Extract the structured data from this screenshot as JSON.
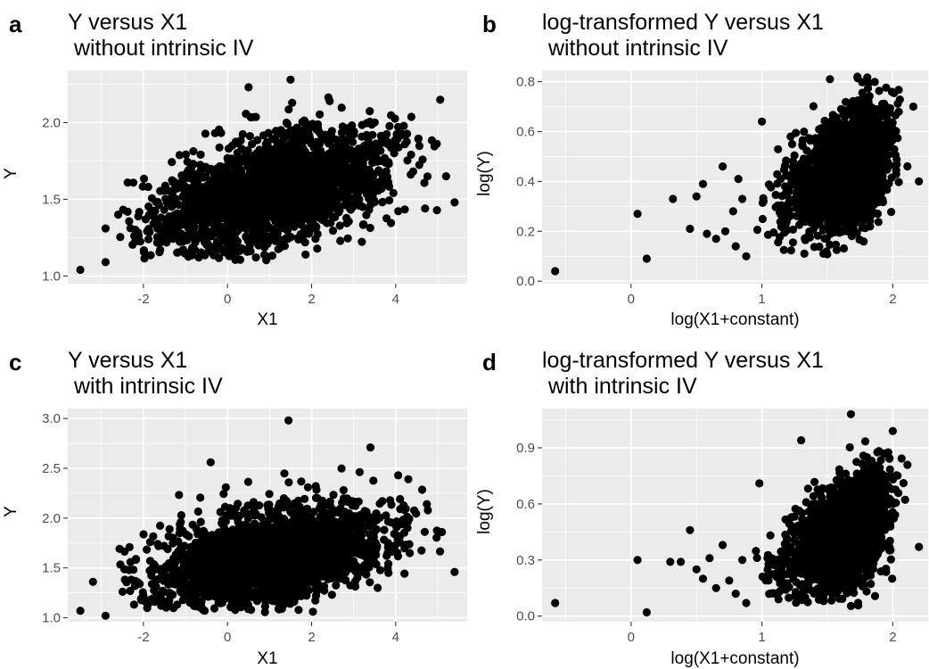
{
  "chart_data": [
    {
      "tag": "a",
      "type": "scatter",
      "title_line1": "Y versus X1",
      "title_line2": " without intrinsic IV",
      "xlabel": "X1",
      "ylabel": "Y",
      "xlim": [
        -3.8,
        5.7
      ],
      "ylim": [
        0.95,
        2.34
      ],
      "xticks": [
        -2,
        0,
        2,
        4
      ],
      "xtick_labels": [
        "-2",
        "0",
        "2",
        "4"
      ],
      "xminor": [
        -3,
        -1,
        1,
        3,
        5
      ],
      "yticks": [
        1.0,
        1.5,
        2.0
      ],
      "ytick_labels": [
        "1.0",
        "1.5",
        "2.0"
      ],
      "yminor": [
        1.25,
        1.75,
        2.25
      ],
      "grid": true,
      "cloud": {
        "n": 2300,
        "seed": 11,
        "x_mean": 1.0,
        "x_sd": 1.4,
        "y_mean": 1.55,
        "y_sd": 0.2,
        "correlation": 0.5,
        "x_range": [
          -2.6,
          5.1
        ],
        "y_range": [
          1.1,
          2.25
        ]
      },
      "outliers": [
        {
          "x": -3.5,
          "y": 1.04
        },
        {
          "x": -2.9,
          "y": 1.09
        },
        {
          "x": -2.9,
          "y": 1.31
        },
        {
          "x": -2.6,
          "y": 1.4
        },
        {
          "x": 0.5,
          "y": 2.23
        },
        {
          "x": 1.5,
          "y": 2.28
        },
        {
          "x": 5.4,
          "y": 1.48
        },
        {
          "x": 5.2,
          "y": 1.65
        },
        {
          "x": 4.7,
          "y": 1.44
        }
      ]
    },
    {
      "tag": "b",
      "type": "scatter",
      "title_line1": "log-transformed Y versus X1",
      "title_line2": " without intrinsic IV",
      "xlabel": "log(X1+constant)",
      "ylabel": "log(Y)",
      "xlim": [
        -0.68,
        2.27
      ],
      "ylim": [
        -0.01,
        0.845
      ],
      "xticks": [
        0,
        1,
        2
      ],
      "xtick_labels": [
        "0",
        "1",
        "2"
      ],
      "xminor": [
        -0.5,
        0.5,
        1.5
      ],
      "yticks": [
        0.0,
        0.2,
        0.4,
        0.6,
        0.8
      ],
      "ytick_labels": [
        "0.0",
        "0.2",
        "0.4",
        "0.6",
        "0.8"
      ],
      "yminor": [
        0.1,
        0.3,
        0.5,
        0.7
      ],
      "grid": true,
      "cloud": {
        "n": 2300,
        "seed": 23,
        "x_mean": 1.7,
        "x_sd": 0.22,
        "y_mean": 0.45,
        "y_sd": 0.12,
        "correlation": 0.45,
        "x_range": [
          0.95,
          2.25
        ],
        "y_range": [
          0.1,
          0.82
        ],
        "x_skew": "left"
      },
      "outliers": [
        {
          "x": -0.58,
          "y": 0.04
        },
        {
          "x": 0.05,
          "y": 0.27
        },
        {
          "x": 0.12,
          "y": 0.09
        },
        {
          "x": 0.32,
          "y": 0.33
        },
        {
          "x": 0.45,
          "y": 0.21
        },
        {
          "x": 0.5,
          "y": 0.34
        },
        {
          "x": 0.55,
          "y": 0.39
        },
        {
          "x": 0.58,
          "y": 0.19
        },
        {
          "x": 0.65,
          "y": 0.17
        },
        {
          "x": 0.7,
          "y": 0.46
        },
        {
          "x": 0.72,
          "y": 0.2
        },
        {
          "x": 0.78,
          "y": 0.28
        },
        {
          "x": 0.8,
          "y": 0.14
        },
        {
          "x": 0.82,
          "y": 0.41
        },
        {
          "x": 0.85,
          "y": 0.33
        },
        {
          "x": 0.88,
          "y": 0.1
        },
        {
          "x": 1.0,
          "y": 0.64
        },
        {
          "x": 1.52,
          "y": 0.81
        },
        {
          "x": 1.73,
          "y": 0.82
        },
        {
          "x": 2.2,
          "y": 0.4
        }
      ]
    },
    {
      "tag": "c",
      "type": "scatter",
      "title_line1": "Y versus X1",
      "title_line2": " with intrinsic IV",
      "xlabel": "X1",
      "ylabel": "Y",
      "xlim": [
        -3.8,
        5.7
      ],
      "ylim": [
        0.96,
        3.1
      ],
      "xticks": [
        -2,
        0,
        2,
        4
      ],
      "xtick_labels": [
        "-2",
        "0",
        "2",
        "4"
      ],
      "xminor": [
        -3,
        -1,
        1,
        3,
        5
      ],
      "yticks": [
        1.0,
        1.5,
        2.0,
        2.5,
        3.0
      ],
      "ytick_labels": [
        "1.0",
        "1.5",
        "2.0",
        "2.5",
        "3.0"
      ],
      "yminor": [
        1.25,
        1.75,
        2.25,
        2.75
      ],
      "grid": true,
      "cloud": {
        "n": 2300,
        "seed": 37,
        "x_mean": 1.0,
        "x_sd": 1.4,
        "y_mean": 1.6,
        "y_sd": 0.27,
        "correlation": 0.45,
        "x_range": [
          -2.6,
          5.1
        ],
        "y_range": [
          1.05,
          2.6
        ]
      },
      "outliers": [
        {
          "x": -3.5,
          "y": 1.07
        },
        {
          "x": -2.9,
          "y": 1.02
        },
        {
          "x": -3.2,
          "y": 1.36
        },
        {
          "x": -0.4,
          "y": 2.56
        },
        {
          "x": 1.45,
          "y": 2.98
        },
        {
          "x": 3.4,
          "y": 2.71
        },
        {
          "x": 5.4,
          "y": 1.46
        },
        {
          "x": 5.1,
          "y": 1.86
        },
        {
          "x": 4.3,
          "y": 2.39
        }
      ]
    },
    {
      "tag": "d",
      "type": "scatter",
      "title_line1": "log-transformed Y versus X1",
      "title_line2": " with intrinsic IV",
      "xlabel": "log(X1+constant)",
      "ylabel": "log(Y)",
      "xlim": [
        -0.68,
        2.27
      ],
      "ylim": [
        -0.03,
        1.11
      ],
      "xticks": [
        0,
        1,
        2
      ],
      "xtick_labels": [
        "0",
        "1",
        "2"
      ],
      "xminor": [
        -0.5,
        0.5,
        1.5
      ],
      "yticks": [
        0.0,
        0.3,
        0.6,
        0.9
      ],
      "ytick_labels": [
        "0.0",
        "0.3",
        "0.6",
        "0.9"
      ],
      "yminor": [
        0.15,
        0.45,
        0.75,
        1.05
      ],
      "grid": true,
      "cloud": {
        "n": 2300,
        "seed": 53,
        "x_mean": 1.7,
        "x_sd": 0.22,
        "y_mean": 0.45,
        "y_sd": 0.15,
        "correlation": 0.45,
        "x_range": [
          0.95,
          2.25
        ],
        "y_range": [
          0.05,
          0.95
        ],
        "x_skew": "left"
      },
      "outliers": [
        {
          "x": -0.58,
          "y": 0.07
        },
        {
          "x": 0.05,
          "y": 0.3
        },
        {
          "x": 0.12,
          "y": 0.02
        },
        {
          "x": 0.3,
          "y": 0.29
        },
        {
          "x": 0.38,
          "y": 0.29
        },
        {
          "x": 0.45,
          "y": 0.46
        },
        {
          "x": 0.5,
          "y": 0.25
        },
        {
          "x": 0.55,
          "y": 0.2
        },
        {
          "x": 0.6,
          "y": 0.31
        },
        {
          "x": 0.65,
          "y": 0.15
        },
        {
          "x": 0.7,
          "y": 0.38
        },
        {
          "x": 0.75,
          "y": 0.19
        },
        {
          "x": 0.8,
          "y": 0.12
        },
        {
          "x": 0.85,
          "y": 0.3
        },
        {
          "x": 0.88,
          "y": 0.07
        },
        {
          "x": 0.98,
          "y": 0.71
        },
        {
          "x": 1.3,
          "y": 0.94
        },
        {
          "x": 1.68,
          "y": 1.08
        },
        {
          "x": 2.0,
          "y": 0.99
        },
        {
          "x": 2.2,
          "y": 0.37
        }
      ]
    }
  ],
  "style": {
    "panel_background": "#ebebeb",
    "grid_color": "#ffffff",
    "point_color": "#000000",
    "tick_label_color": "#4d4d4d"
  }
}
